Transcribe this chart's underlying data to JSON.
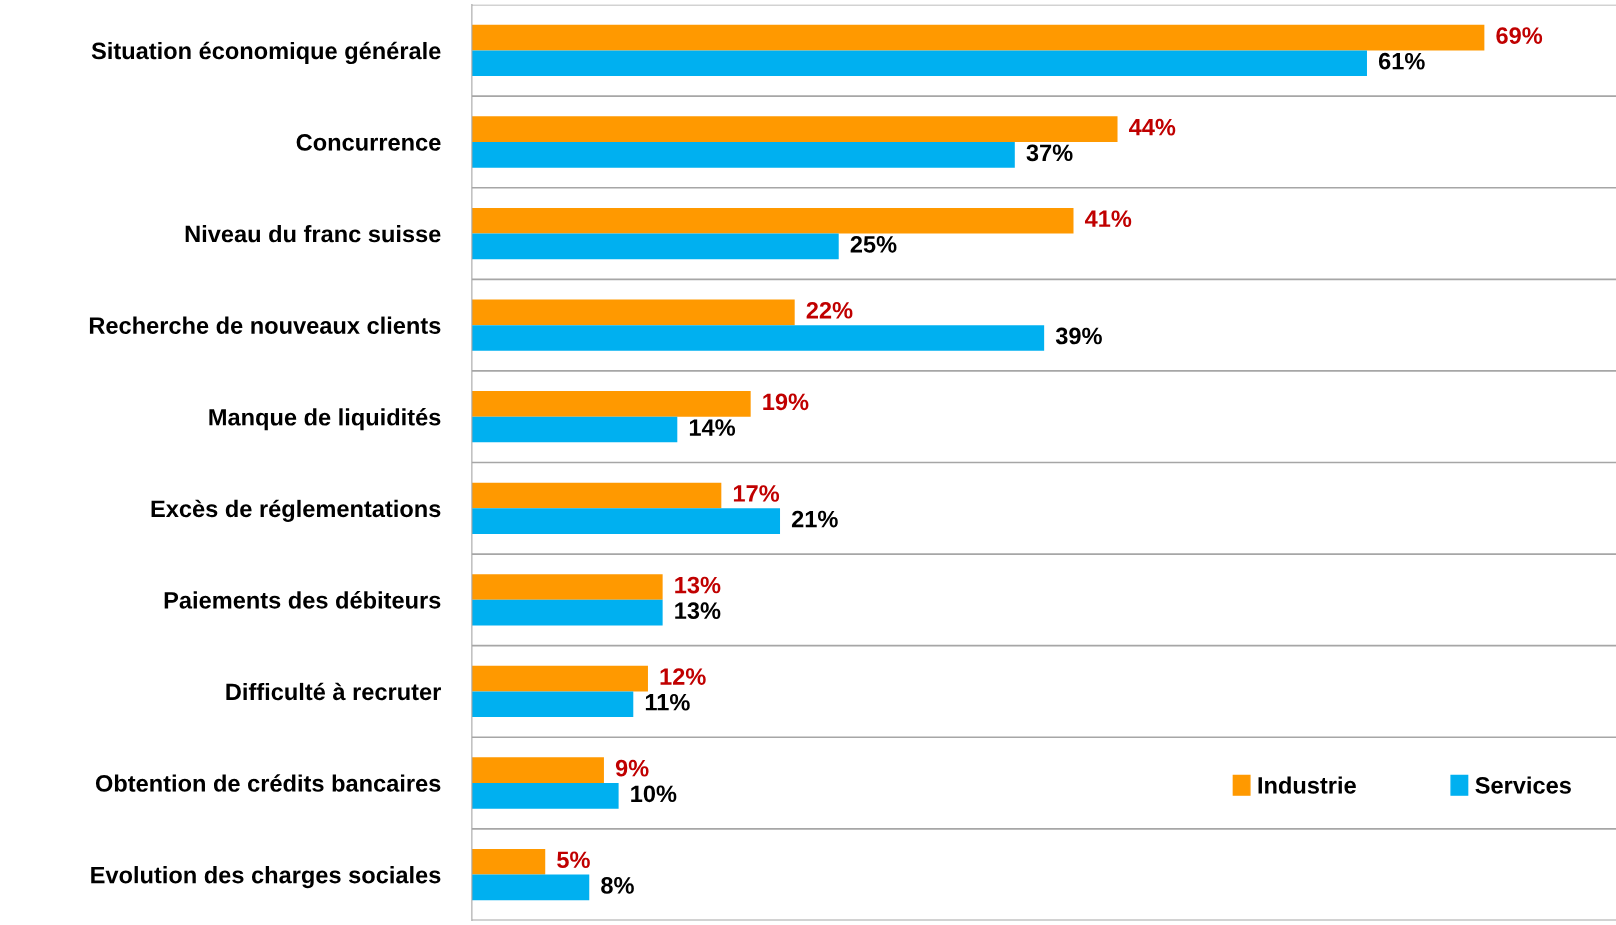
{
  "chart_data": {
    "type": "bar",
    "orientation": "horizontal",
    "categories": [
      "Situation économique générale",
      "Concurrence",
      "Niveau du franc suisse",
      "Recherche de nouveaux clients",
      "Manque de liquidités",
      "Excès de réglementations",
      "Paiements des débiteurs",
      "Difficulté à recruter",
      "Obtention de crédits bancaires",
      "Evolution des charges sociales"
    ],
    "series": [
      {
        "name": "Industrie",
        "color": "#ff9900",
        "values": [
          69,
          44,
          41,
          22,
          19,
          17,
          13,
          12,
          9,
          5
        ],
        "value_labels": [
          "69%",
          "44%",
          "41%",
          "22%",
          "19%",
          "17%",
          "13%",
          "12%",
          "9%",
          "5%"
        ]
      },
      {
        "name": "Services",
        "color": "#00b0f0",
        "values": [
          61,
          37,
          25,
          39,
          14,
          21,
          13,
          11,
          10,
          8
        ],
        "value_labels": [
          "61%",
          "37%",
          "25%",
          "39%",
          "14%",
          "21%",
          "13%",
          "11%",
          "10%",
          "8%"
        ]
      }
    ],
    "tick_labels": "y",
    "grid": "y",
    "legend": "bottom right"
  }
}
